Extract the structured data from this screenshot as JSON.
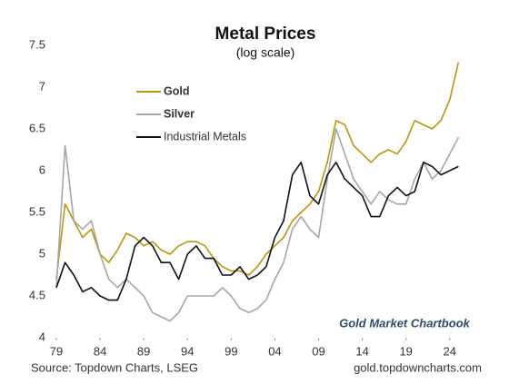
{
  "chart_data": {
    "type": "line",
    "title": "Metal Prices",
    "subtitle": "(log scale)",
    "annotation": "Gold Market Chartbook",
    "source": "Source: Topdown Charts, LSEG",
    "website": "gold.topdowncharts.com",
    "x": [
      1979,
      1980,
      1981,
      1982,
      1983,
      1984,
      1985,
      1986,
      1987,
      1988,
      1989,
      1990,
      1991,
      1992,
      1993,
      1994,
      1995,
      1996,
      1997,
      1998,
      1999,
      2000,
      2001,
      2002,
      2003,
      2004,
      2005,
      2006,
      2007,
      2008,
      2009,
      2010,
      2011,
      2012,
      2013,
      2014,
      2015,
      2016,
      2017,
      2018,
      2019,
      2020,
      2021,
      2022,
      2023,
      2024,
      2025
    ],
    "series": [
      {
        "name": "Gold",
        "color": "#b8970f",
        "values": [
          4.7,
          5.6,
          5.4,
          5.2,
          5.3,
          5.0,
          4.9,
          5.05,
          5.25,
          5.2,
          5.1,
          5.15,
          5.05,
          5.0,
          5.1,
          5.15,
          5.15,
          5.1,
          4.95,
          4.85,
          4.8,
          4.8,
          4.75,
          4.85,
          5.0,
          5.1,
          5.2,
          5.4,
          5.5,
          5.6,
          5.75,
          6.1,
          6.6,
          6.55,
          6.3,
          6.2,
          6.1,
          6.2,
          6.25,
          6.2,
          6.35,
          6.6,
          6.55,
          6.5,
          6.6,
          6.85,
          7.3
        ]
      },
      {
        "name": "Silver",
        "color": "#a6a6a6",
        "values": [
          4.6,
          6.3,
          5.4,
          5.3,
          5.4,
          5.0,
          4.7,
          4.6,
          4.7,
          4.6,
          4.5,
          4.3,
          4.25,
          4.2,
          4.3,
          4.5,
          4.5,
          4.5,
          4.5,
          4.6,
          4.5,
          4.35,
          4.3,
          4.35,
          4.45,
          4.7,
          4.9,
          5.3,
          5.45,
          5.3,
          5.2,
          5.9,
          6.5,
          6.2,
          5.9,
          5.75,
          5.6,
          5.75,
          5.65,
          5.6,
          5.6,
          5.9,
          6.1,
          5.9,
          6.0,
          6.2,
          6.4
        ]
      },
      {
        "name": "Industrial Metals",
        "color": "#111111",
        "values": [
          4.6,
          4.9,
          4.75,
          4.55,
          4.6,
          4.5,
          4.45,
          4.45,
          4.7,
          5.1,
          5.2,
          5.1,
          4.9,
          4.9,
          4.7,
          5.0,
          5.1,
          4.95,
          4.95,
          4.75,
          4.75,
          4.85,
          4.7,
          4.75,
          4.85,
          5.2,
          5.4,
          5.95,
          6.1,
          5.7,
          5.6,
          5.95,
          6.1,
          5.9,
          5.8,
          5.7,
          5.45,
          5.45,
          5.7,
          5.8,
          5.7,
          5.75,
          6.1,
          6.05,
          5.95,
          6.0,
          6.05
        ]
      }
    ],
    "xlim": [
      1979,
      2026
    ],
    "xticks": [
      {
        "value": 1979,
        "label": "79"
      },
      {
        "value": 1984,
        "label": "84"
      },
      {
        "value": 1989,
        "label": "89"
      },
      {
        "value": 1994,
        "label": "94"
      },
      {
        "value": 1999,
        "label": "99"
      },
      {
        "value": 2004,
        "label": "04"
      },
      {
        "value": 2009,
        "label": "09"
      },
      {
        "value": 2014,
        "label": "14"
      },
      {
        "value": 2019,
        "label": "19"
      },
      {
        "value": 2024,
        "label": "24"
      }
    ],
    "ylim": [
      4,
      7.5
    ],
    "yticks": [
      4,
      4.5,
      5,
      5.5,
      6,
      6.5,
      7,
      7.5
    ],
    "grid": false,
    "legend": "upper-left"
  }
}
